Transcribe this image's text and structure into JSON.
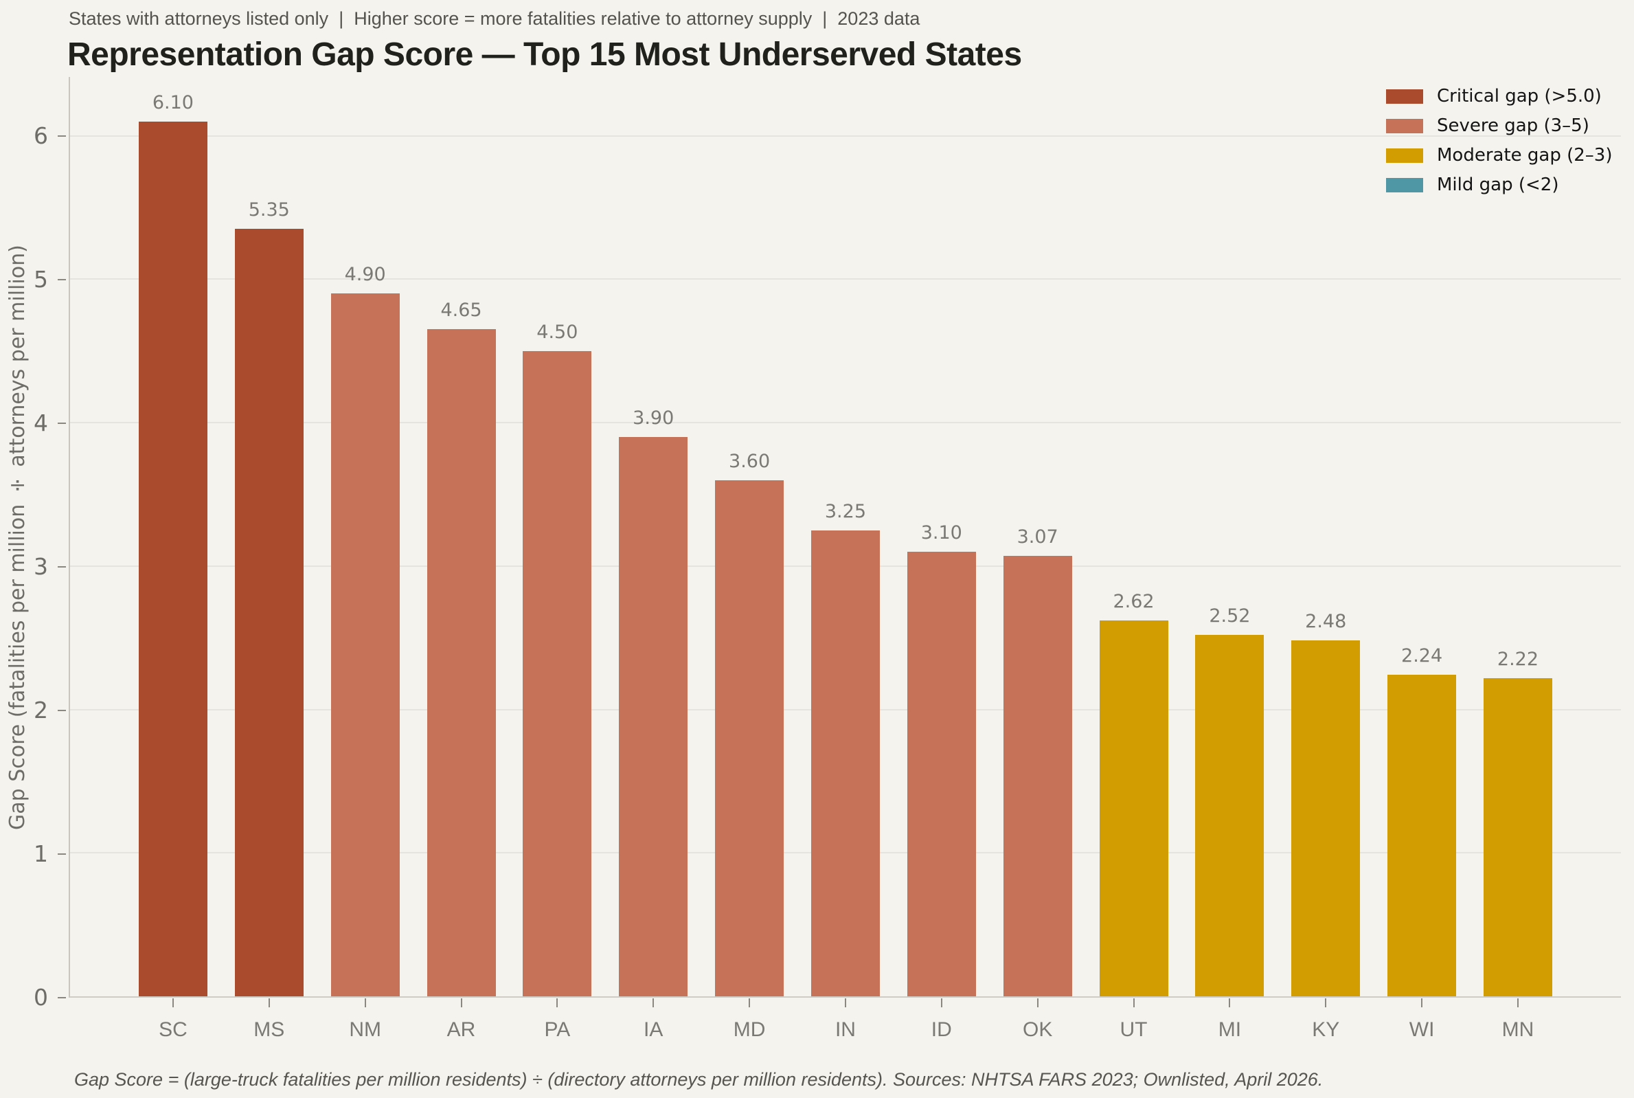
{
  "header": {
    "subtitle": "States with attorneys listed only  |  Higher score = more fatalities relative to attorney supply  |  2023 data",
    "title": "Representation Gap Score — Top 15 Most Underserved States"
  },
  "chart_data": {
    "type": "bar",
    "title": "Representation Gap Score — Top 15 Most Underserved States",
    "categories": [
      "SC",
      "MS",
      "NM",
      "AR",
      "PA",
      "IA",
      "MD",
      "IN",
      "ID",
      "OK",
      "UT",
      "MI",
      "KY",
      "WI",
      "MN"
    ],
    "values": [
      6.1,
      5.35,
      4.9,
      4.65,
      4.5,
      3.9,
      3.6,
      3.25,
      3.1,
      3.07,
      2.62,
      2.52,
      2.48,
      2.24,
      2.22
    ],
    "value_labels": [
      "6.10",
      "5.35",
      "4.90",
      "4.65",
      "4.50",
      "3.90",
      "3.60",
      "3.25",
      "3.10",
      "3.07",
      "2.62",
      "2.52",
      "2.48",
      "2.24",
      "2.22"
    ],
    "bar_categories_tier": [
      "critical",
      "critical",
      "severe",
      "severe",
      "severe",
      "severe",
      "severe",
      "severe",
      "severe",
      "severe",
      "moderate",
      "moderate",
      "moderate",
      "moderate",
      "moderate"
    ],
    "bar_colors": [
      "#aa4b2e",
      "#aa4b2e",
      "#c57259",
      "#c57259",
      "#c57259",
      "#c57259",
      "#c57259",
      "#c57259",
      "#c57259",
      "#c57259",
      "#d29d00",
      "#d29d00",
      "#d29d00",
      "#d29d00",
      "#d29d00"
    ],
    "xlabel": "",
    "ylabel": "Gap Score (fatalities per million ÷ attorneys per million)",
    "yticks": [
      0,
      1,
      2,
      3,
      4,
      5,
      6
    ],
    "ylim": [
      0,
      6.41
    ],
    "grid": "horizontal",
    "legend": {
      "position": "top-right",
      "entries": [
        {
          "label": "Critical gap (>5.0)",
          "color": "#aa4b2e"
        },
        {
          "label": "Severe gap (3–5)",
          "color": "#c57259"
        },
        {
          "label": "Moderate gap (2–3)",
          "color": "#d29d00"
        },
        {
          "label": "Mild gap (<2)",
          "color": "#4f97a4"
        }
      ]
    }
  },
  "colors": {
    "background": "#f5f3ee",
    "critical": "#aa4b2e",
    "severe": "#c57259",
    "moderate": "#d29d00",
    "mild": "#4f97a4",
    "gridline": "#e6e4df",
    "axis_line": "#c9c6c0",
    "tick_text": "#6e6c66",
    "value_text": "#7b7974"
  },
  "footer": {
    "text": "Gap Score = (large-truck fatalities per million residents) ÷ (directory attorneys per million residents). Sources: NHTSA FARS 2023; Ownlisted, April 2026."
  }
}
